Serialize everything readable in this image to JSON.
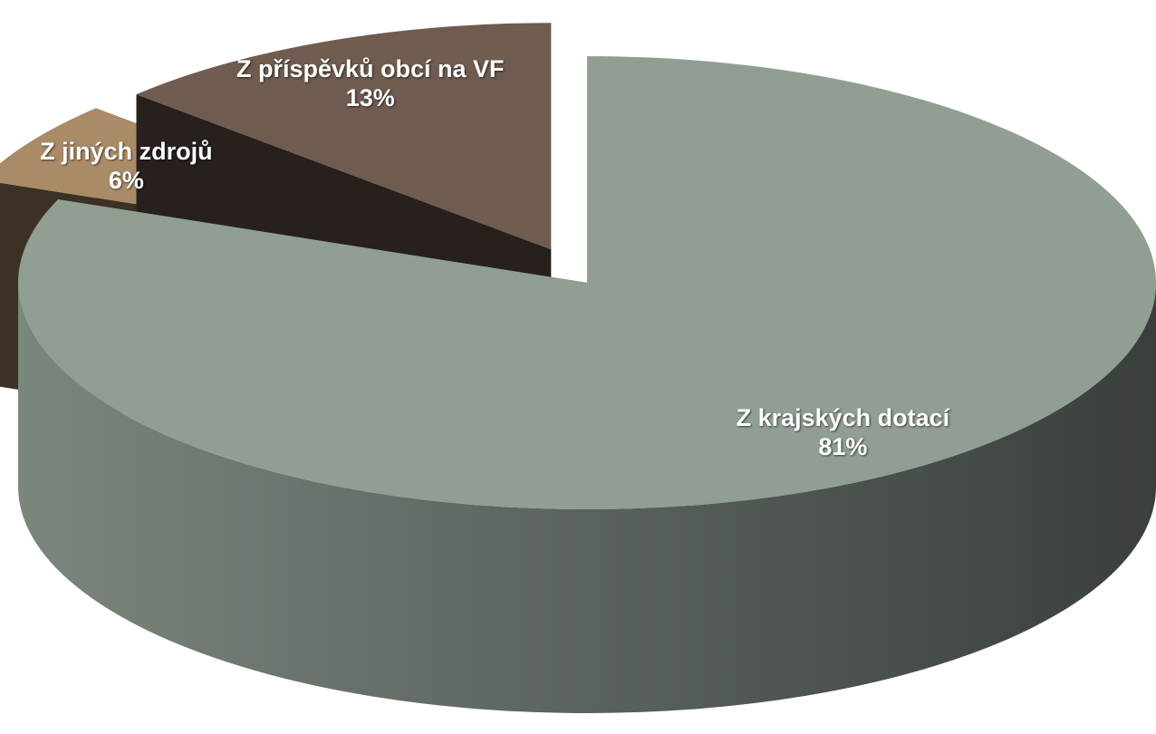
{
  "chart_data": {
    "type": "pie3d",
    "categories": [
      "Z krajských dotací",
      "Z jiných zdrojů",
      "Z příspěvků obcí na VF"
    ],
    "values": [
      81,
      6,
      13
    ],
    "value_labels": [
      "81%",
      "6%",
      "13%"
    ],
    "colors": [
      "#919e93",
      "#a98b68",
      "#6f5b50"
    ]
  }
}
